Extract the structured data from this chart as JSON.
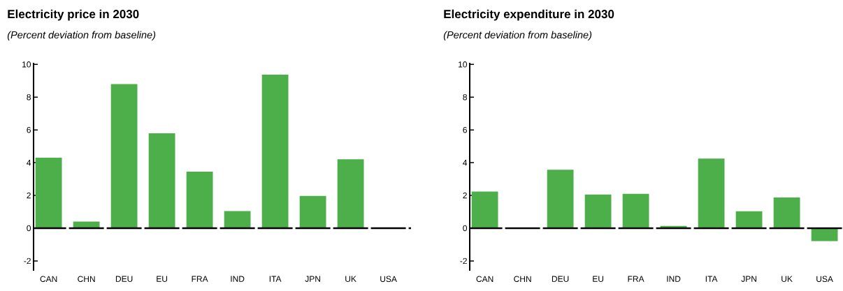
{
  "chart_data": [
    {
      "type": "bar",
      "title": "Electricity price in 2030",
      "subtitle": "(Percent deviation from baseline)",
      "categories": [
        "CAN",
        "CHN",
        "DEU",
        "EU",
        "FRA",
        "IND",
        "ITA",
        "JPN",
        "UK",
        "USA"
      ],
      "values": [
        4.3,
        0.4,
        8.8,
        5.8,
        3.45,
        1.04,
        9.38,
        1.97,
        4.21,
        0
      ],
      "color": "#4daf4a",
      "ylim": [
        -2.6,
        10.1
      ],
      "yticks": [
        -2,
        0,
        2,
        4,
        6,
        8,
        10
      ]
    },
    {
      "type": "bar",
      "title": "Electricity expenditure in 2030",
      "subtitle": "(Percent deviation from baseline)",
      "categories": [
        "CAN",
        "CHN",
        "DEU",
        "EU",
        "FRA",
        "IND",
        "ITA",
        "JPN",
        "UK",
        "USA"
      ],
      "values": [
        2.24,
        0,
        3.57,
        2.06,
        2.1,
        0.14,
        4.25,
        1.03,
        1.87,
        -0.79
      ],
      "color": "#4daf4a",
      "ylim": [
        -2.6,
        10.1
      ],
      "yticks": [
        -2,
        0,
        2,
        4,
        6,
        8,
        10
      ]
    }
  ]
}
